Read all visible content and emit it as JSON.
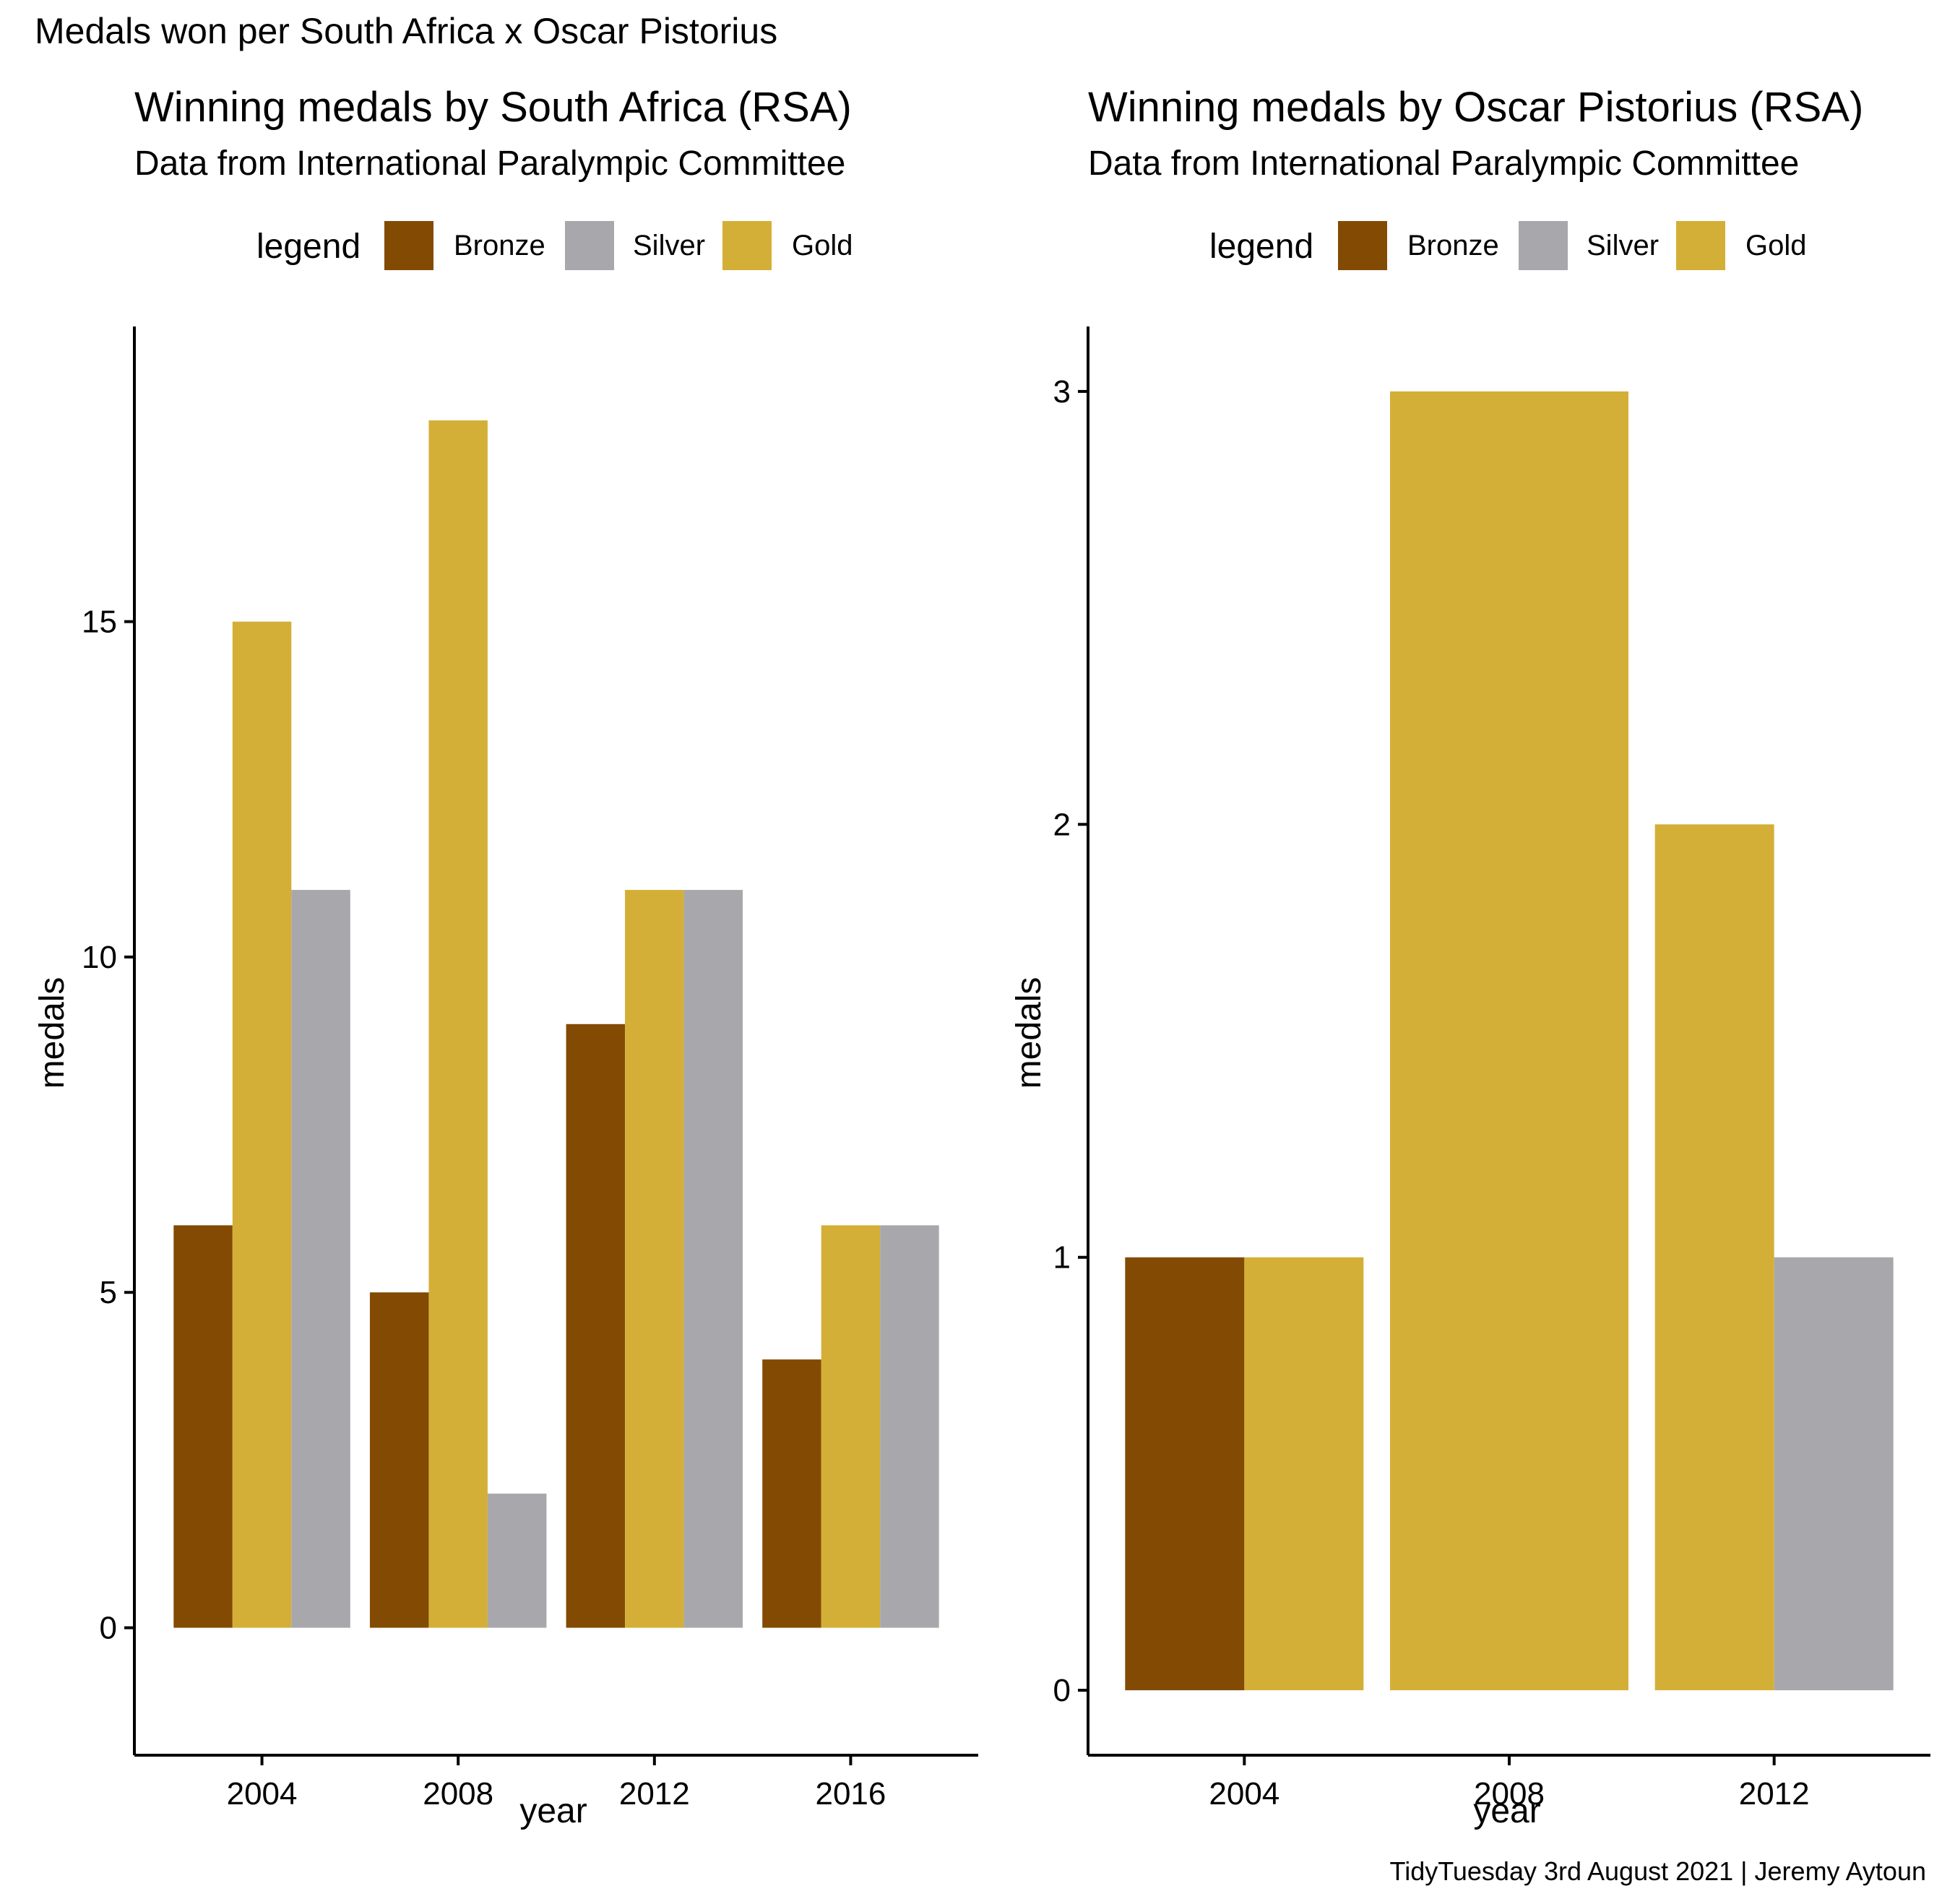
{
  "page": {
    "title": "Medals won per South Africa x Oscar Pistorius",
    "caption": "TidyTuesday 3rd August 2021 | Jeremy Aytoun"
  },
  "colors": {
    "Bronze": "#834A04",
    "Silver": "#A8A8AC",
    "Gold": "#D4AF37",
    "axis": "#000000",
    "background": "#FFFFFF"
  },
  "chart_data": [
    {
      "type": "bar",
      "title": "Winning medals by South Africa (RSA)",
      "subtitle": "Data from International Paralympic Committee",
      "xlabel": "year",
      "ylabel": "medals",
      "legend_title": "legend",
      "legend_position": "top",
      "legend_items": [
        "Bronze",
        "Silver",
        "Gold"
      ],
      "categories": [
        "2004",
        "2008",
        "2012",
        "2016"
      ],
      "series": [
        {
          "name": "Bronze",
          "values": [
            6,
            5,
            9,
            4
          ]
        },
        {
          "name": "Gold",
          "values": [
            15,
            18,
            11,
            6
          ]
        },
        {
          "name": "Silver",
          "values": [
            11,
            2,
            11,
            6
          ]
        }
      ],
      "yticks": [
        0,
        5,
        10,
        15
      ],
      "ylim": [
        -1.9,
        19.4
      ],
      "grid": false
    },
    {
      "type": "bar",
      "title": "Winning medals by Oscar Pistorius (RSA)",
      "subtitle": "Data from International Paralympic Committee",
      "xlabel": "year",
      "ylabel": "medals",
      "legend_title": "legend",
      "legend_position": "top",
      "legend_items": [
        "Bronze",
        "Silver",
        "Gold"
      ],
      "categories": [
        "2004",
        "2008",
        "2012"
      ],
      "series": [
        {
          "name": "Bronze",
          "values": [
            1,
            null,
            null
          ]
        },
        {
          "name": "Gold",
          "values": [
            1,
            3,
            2
          ]
        },
        {
          "name": "Silver",
          "values": [
            null,
            null,
            1
          ]
        }
      ],
      "yticks": [
        0,
        1,
        2,
        3
      ],
      "ylim": [
        -0.15,
        3.15
      ],
      "grid": false
    }
  ]
}
